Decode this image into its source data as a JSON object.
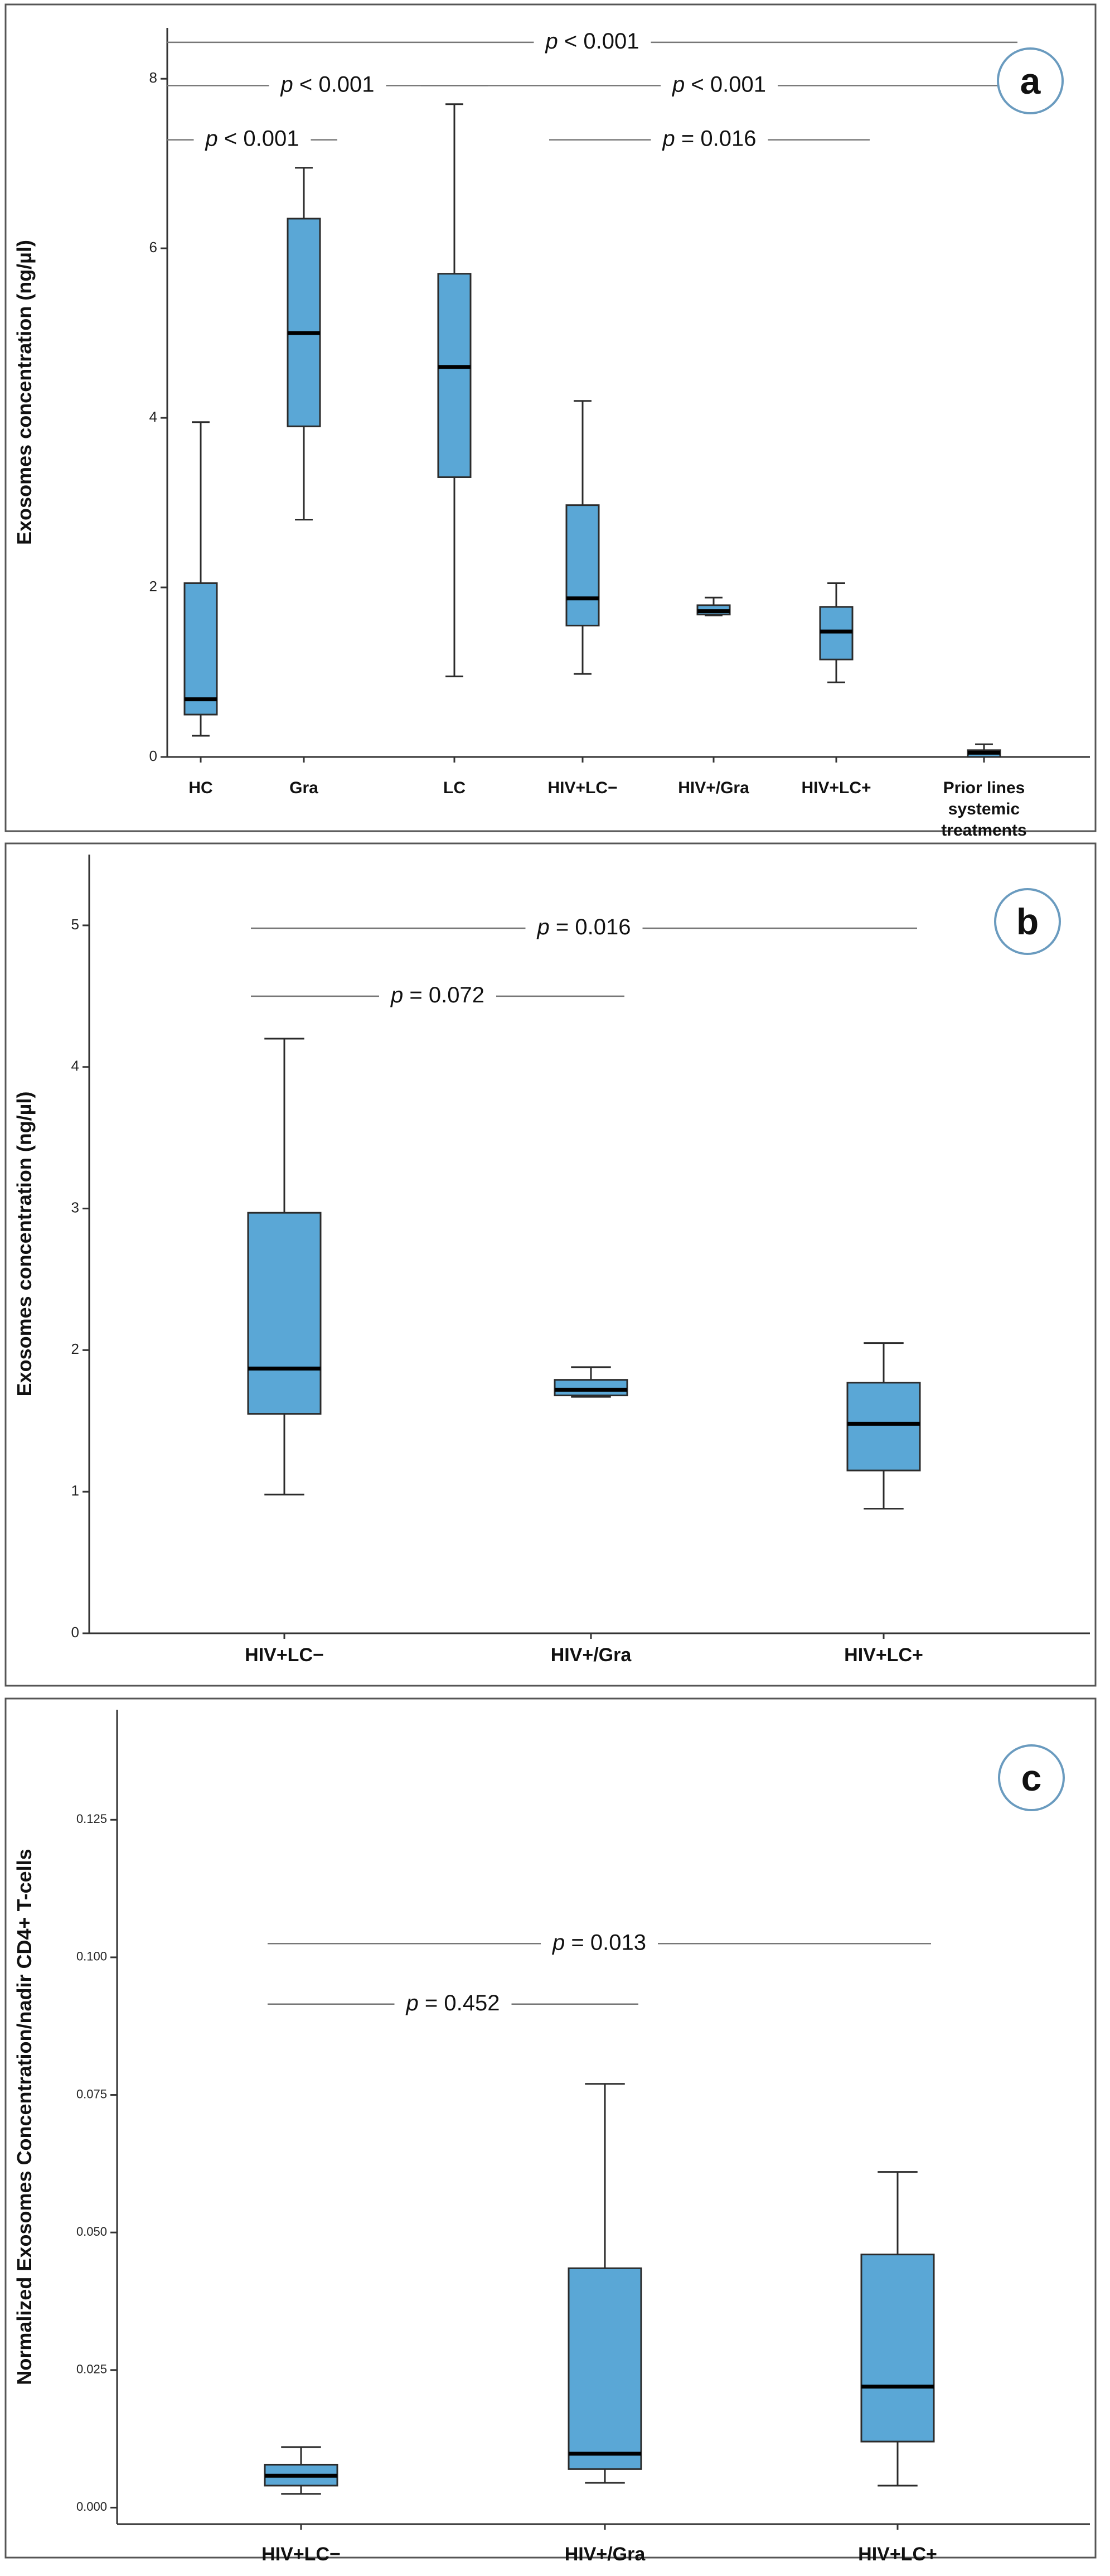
{
  "chart_data": [
    {
      "id": "a",
      "type": "box",
      "badge": "a",
      "ylabel": "Exosomes concentration (ng/µl)",
      "ylim": [
        0,
        8.6
      ],
      "yticks": [
        "0",
        "2",
        "4",
        "6",
        "8"
      ],
      "ytick_values": [
        0,
        2,
        4,
        6,
        8
      ],
      "categories": [
        {
          "label": "HC",
          "min": 0.25,
          "q1": 0.5,
          "median": 0.68,
          "q3": 2.05,
          "max": 3.95
        },
        {
          "label": "Gra",
          "min": 2.8,
          "q1": 3.9,
          "median": 5.0,
          "q3": 6.35,
          "max": 6.95
        },
        {
          "label": "LC",
          "min": 0.95,
          "q1": 3.3,
          "median": 4.6,
          "q3": 5.7,
          "max": 7.7
        },
        {
          "label": "HIV+LC−",
          "min": 0.98,
          "q1": 1.55,
          "median": 1.87,
          "q3": 2.97,
          "max": 4.2
        },
        {
          "label": "HIV+/Gra",
          "min": 1.67,
          "q1": 1.68,
          "median": 1.72,
          "q3": 1.79,
          "max": 1.88
        },
        {
          "label": "HIV+LC+",
          "min": 0.88,
          "q1": 1.15,
          "median": 1.48,
          "q3": 1.77,
          "max": 2.05
        },
        {
          "label": "Prior lines systemic treatments",
          "label_lines": [
            "Prior lines",
            "systemic",
            "treatments"
          ],
          "min": 0.0,
          "q1": 0.0,
          "median": 0.05,
          "q3": 0.08,
          "max": 0.15
        }
      ],
      "comparisons": [
        {
          "text": "p < 0.001",
          "y": 8.43,
          "from_category": 0,
          "to_category": 6
        },
        {
          "text": "p < 0.001",
          "y": 7.92,
          "from_category": 0,
          "to_category": 2
        },
        {
          "text": "p < 0.001",
          "y": 7.92,
          "from_category": 2,
          "to_category": 6
        },
        {
          "text": "p < 0.001",
          "y": 7.28,
          "from_category": 0,
          "to_category": 1
        },
        {
          "text": "p = 0.016",
          "y": 7.28,
          "from_category": 3,
          "to_category": 5
        }
      ]
    },
    {
      "id": "b",
      "type": "box",
      "badge": "b",
      "ylabel": "Exosomes concentration (ng/µl)",
      "ylim": [
        0,
        5.5
      ],
      "yticks": [
        "0",
        "1",
        "2",
        "3",
        "4",
        "5"
      ],
      "ytick_values": [
        0,
        1,
        2,
        3,
        4,
        5
      ],
      "categories": [
        {
          "label": "HIV+LC−",
          "min": 0.98,
          "q1": 1.55,
          "median": 1.87,
          "q3": 2.97,
          "max": 4.2
        },
        {
          "label": "HIV+/Gra",
          "min": 1.67,
          "q1": 1.68,
          "median": 1.72,
          "q3": 1.79,
          "max": 1.88
        },
        {
          "label": "HIV+LC+",
          "min": 0.88,
          "q1": 1.15,
          "median": 1.48,
          "q3": 1.77,
          "max": 2.05
        }
      ],
      "comparisons": [
        {
          "text": "p = 0.016",
          "y": 4.98,
          "from_category": 0,
          "to_category": 2
        },
        {
          "text": "p = 0.072",
          "y": 4.5,
          "from_category": 0,
          "to_category": 1
        }
      ]
    },
    {
      "id": "c",
      "type": "box",
      "badge": "c",
      "ylabel": "Normalized Exosomes Concentration/nadir CD4+ T-cells",
      "ylim": [
        -0.003,
        0.145
      ],
      "yticks": [
        "0.000",
        "0.025",
        "0.050",
        "0.075",
        "0.100",
        "0.125"
      ],
      "ytick_values": [
        0,
        0.025,
        0.05,
        0.075,
        0.1,
        0.125
      ],
      "categories": [
        {
          "label": "HIV+LC−",
          "min": 0.0025,
          "q1": 0.004,
          "median": 0.0058,
          "q3": 0.0078,
          "max": 0.011
        },
        {
          "label": "HIV+/Gra",
          "min": 0.0045,
          "q1": 0.007,
          "median": 0.0098,
          "q3": 0.0435,
          "max": 0.077
        },
        {
          "label": "HIV+LC+",
          "min": 0.004,
          "q1": 0.012,
          "median": 0.022,
          "q3": 0.046,
          "max": 0.061
        }
      ],
      "comparisons": [
        {
          "text": "p = 0.013",
          "y": 0.1025,
          "from_category": 0,
          "to_category": 2
        },
        {
          "text": "p = 0.452",
          "y": 0.0915,
          "from_category": 0,
          "to_category": 1
        }
      ]
    }
  ]
}
